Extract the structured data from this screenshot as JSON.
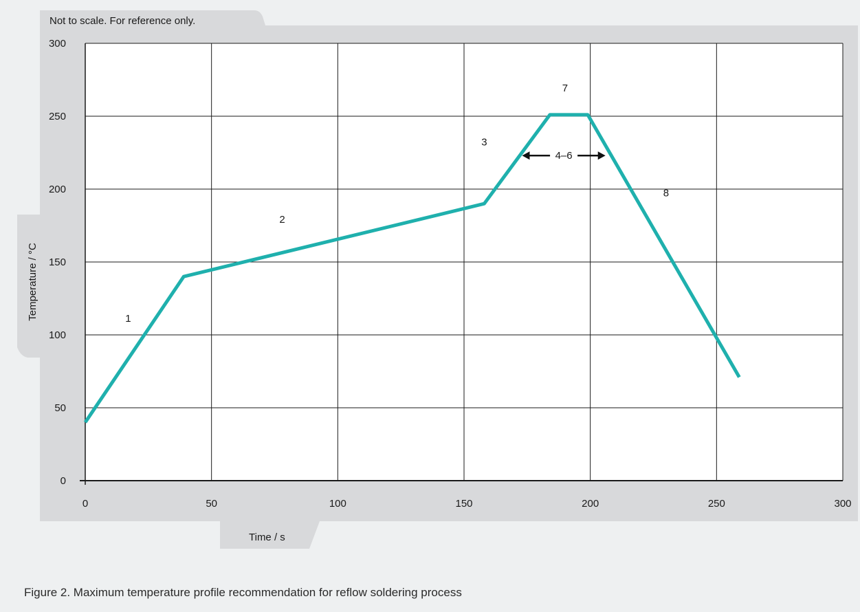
{
  "note": "Not to scale. For reference only.",
  "caption": "Figure 2. Maximum temperature profile recommendation for reflow soldering process",
  "colors": {
    "line": "#1fb0ad",
    "panel": "#d8d9db",
    "plot_bg": "#ffffff",
    "page_bg": "#eef0f1"
  },
  "chart_data": {
    "type": "line",
    "xlabel": "Time / s",
    "ylabel": "Temperature / °C",
    "xlim": [
      0,
      300
    ],
    "ylim": [
      0,
      300
    ],
    "xticks": [
      0,
      50,
      100,
      150,
      200,
      250,
      300
    ],
    "yticks": [
      0,
      50,
      100,
      150,
      200,
      250,
      300
    ],
    "grid": true,
    "series": [
      {
        "x": [
          0,
          39,
          158,
          184,
          199,
          259
        ],
        "y": [
          40,
          140,
          190,
          251,
          251,
          71
        ]
      }
    ],
    "segment_labels": [
      {
        "text": "1",
        "x": 17,
        "y": 109
      },
      {
        "text": "2",
        "x": 78,
        "y": 177
      },
      {
        "text": "3",
        "x": 158,
        "y": 230
      },
      {
        "text": "7",
        "x": 190,
        "y": 267
      },
      {
        "text": "8",
        "x": 230,
        "y": 195
      }
    ],
    "annotations": [
      {
        "text": "4–6",
        "x_from": 173,
        "x_to": 206,
        "y": 223
      }
    ]
  }
}
